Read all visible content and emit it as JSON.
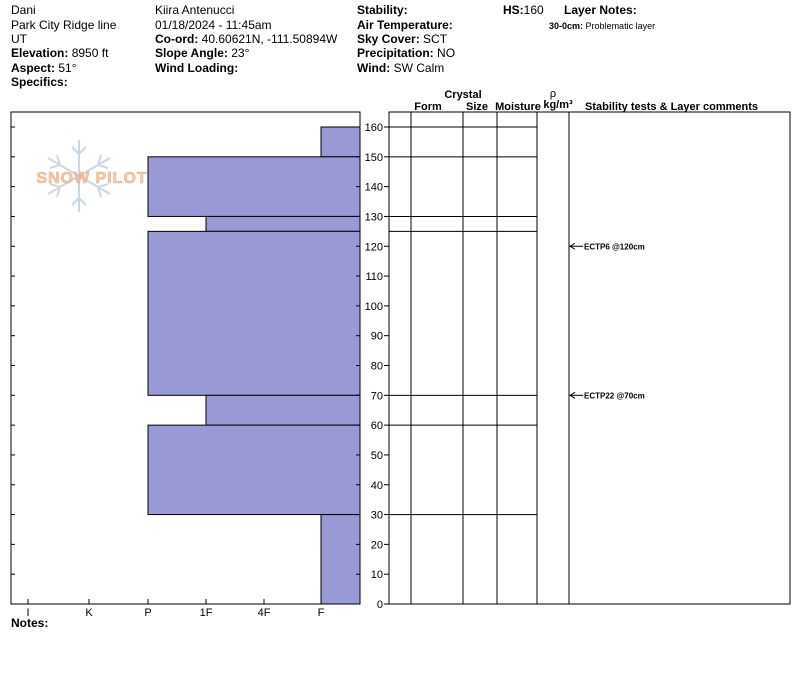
{
  "header": {
    "observer": "Dani",
    "location": "Park City Ridge line",
    "state": "UT",
    "elevation_label": "Elevation:",
    "elevation_value": "8950 ft",
    "aspect_label": "Aspect:",
    "aspect_value": "51°",
    "specifics_label": "Specifics:",
    "author": "Kiira Antenucci",
    "datetime": "01/18/2024 - 11:45am",
    "coord_label": "Co-ord:",
    "coord_value": "40.60621N, -111.50894W",
    "slope_label": "Slope Angle:",
    "slope_value": "23°",
    "wind_loading_label": "Wind Loading:",
    "stability_label": "Stability:",
    "air_temp_label": "Air Temperature:",
    "sky_cover_label": "Sky Cover:",
    "sky_cover_value": "SCT",
    "precip_label": "Precipitation:",
    "precip_value": "NO",
    "wind_label": "Wind:",
    "wind_value": "SW Calm",
    "hs_label": "HS:",
    "hs_value": "160",
    "layer_notes_label": "Layer Notes:",
    "layer_note_range": "30-0cm:",
    "layer_note_text": "Problematic layer"
  },
  "notes_label": "Notes:",
  "watermark": {
    "text": "SNOW PILOT",
    "icon": "snowflake-icon"
  },
  "columns": {
    "crystal": "Crystal",
    "form": "Form",
    "size": "Size",
    "moisture": "Moisture",
    "rho": "ρ",
    "density_unit": "kg/m³",
    "comments": "Stability tests & Layer comments"
  },
  "colors": {
    "bar_fill": "#9999d6",
    "bar_stroke": "#000000"
  },
  "chart_data": {
    "type": "bar",
    "orientation": "horizontal",
    "y_range": [
      0,
      160
    ],
    "y_ticks": [
      0,
      10,
      20,
      30,
      40,
      50,
      60,
      70,
      80,
      90,
      100,
      110,
      120,
      130,
      140,
      150,
      160
    ],
    "hardness_scale": [
      "I",
      "K",
      "P",
      "1F",
      "4F",
      "F"
    ],
    "layers": [
      {
        "bottom": 150,
        "top": 160,
        "hardness": "F"
      },
      {
        "bottom": 130,
        "top": 150,
        "hardness": "P"
      },
      {
        "bottom": 125,
        "top": 130,
        "hardness": "1F"
      },
      {
        "bottom": 70,
        "top": 125,
        "hardness": "P"
      },
      {
        "bottom": 60,
        "top": 70,
        "hardness": "1F"
      },
      {
        "bottom": 30,
        "top": 60,
        "hardness": "P"
      },
      {
        "bottom": 0,
        "top": 30,
        "hardness": "F"
      }
    ],
    "layer_boundaries": [
      160,
      150,
      130,
      125,
      70,
      60,
      30
    ],
    "tests": [
      {
        "depth": 120,
        "label": "ECTP6 @120cm"
      },
      {
        "depth": 70,
        "label": "ECTP22 @70cm"
      }
    ]
  }
}
